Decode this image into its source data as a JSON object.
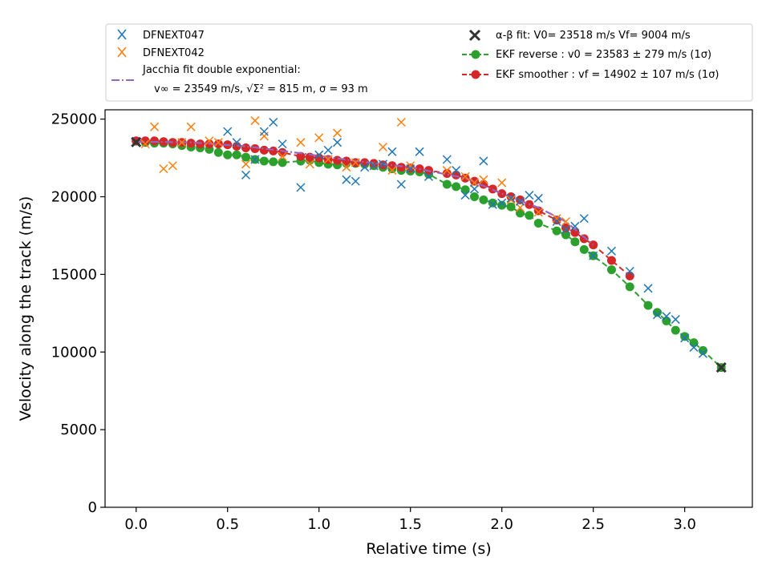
{
  "chart_data": {
    "type": "scatter",
    "xlabel": "Relative time (s)",
    "ylabel": "Velocity along the track (m/s)",
    "xlim": [
      -0.17,
      3.37
    ],
    "ylim": [
      0,
      25600
    ],
    "xticks": [
      0.0,
      0.5,
      1.0,
      1.5,
      2.0,
      2.5,
      3.0
    ],
    "xtick_labels": [
      "0.0",
      "0.5",
      "1.0",
      "1.5",
      "2.0",
      "2.5",
      "3.0"
    ],
    "yticks": [
      0,
      5000,
      10000,
      15000,
      20000,
      25000
    ],
    "ytick_labels": [
      "0",
      "5000",
      "10000",
      "15000",
      "20000",
      "25000"
    ],
    "grid": false,
    "legend_position": "above plot",
    "colors": {
      "blue": "#1f77b4",
      "orange": "#ff7f0e",
      "purple": "#9467bd",
      "green": "#2ca02c",
      "red": "#d62728",
      "black": "#333333"
    },
    "series": [
      {
        "name": "DFNEXT047",
        "marker": "x",
        "color": "#1f77b4",
        "x": [
          0.5,
          0.55,
          0.6,
          0.65,
          0.7,
          0.75,
          0.8,
          0.9,
          1.0,
          1.05,
          1.1,
          1.15,
          1.2,
          1.25,
          1.3,
          1.35,
          1.4,
          1.45,
          1.5,
          1.55,
          1.6,
          1.7,
          1.75,
          1.8,
          1.85,
          1.9,
          1.95,
          2.0,
          2.05,
          2.1,
          2.15,
          2.2,
          2.3,
          2.35,
          2.4,
          2.45,
          2.5,
          2.6,
          2.7,
          2.8,
          2.85,
          2.9,
          2.95,
          3.0,
          3.05,
          3.1
        ],
        "y": [
          24200,
          23500,
          21400,
          22400,
          24200,
          24800,
          23400,
          20600,
          22700,
          23000,
          23500,
          21100,
          21000,
          21900,
          22000,
          22100,
          22900,
          20800,
          21800,
          22900,
          21300,
          22400,
          21700,
          20100,
          20500,
          22300,
          19500,
          19600,
          19900,
          19700,
          20100,
          19900,
          18400,
          17900,
          18100,
          18600,
          16200,
          16500,
          15200,
          14100,
          12400,
          12300,
          12100,
          10900,
          10300,
          9900
        ]
      },
      {
        "name": "DFNEXT042",
        "marker": "x",
        "color": "#ff7f0e",
        "x": [
          0.05,
          0.1,
          0.15,
          0.2,
          0.25,
          0.3,
          0.4,
          0.45,
          0.6,
          0.65,
          0.7,
          0.8,
          0.9,
          0.95,
          1.0,
          1.05,
          1.1,
          1.15,
          1.2,
          1.3,
          1.35,
          1.4,
          1.45,
          1.5,
          1.7,
          1.8,
          1.85,
          1.9,
          2.0,
          2.05,
          2.1,
          2.2,
          2.3,
          2.35
        ],
        "y": [
          23400,
          24500,
          21800,
          22000,
          23500,
          24500,
          23600,
          23500,
          22100,
          24900,
          23900,
          22600,
          23500,
          22100,
          23800,
          22400,
          24100,
          21900,
          22200,
          22000,
          23200,
          21700,
          24800,
          22000,
          21700,
          21300,
          20900,
          21100,
          20900,
          19800,
          19300,
          19000,
          18600,
          18400
        ]
      },
      {
        "name": "Jacchia fit double exponential:",
        "name_line2": "v∞ = 23549 m/s, √Σ² = 815 m, σ = 93 m",
        "marker": "dashdot",
        "color": "#9467bd",
        "x": [
          0.0,
          0.3,
          0.6,
          0.9,
          1.2,
          1.5,
          1.8,
          2.0,
          2.2,
          2.35,
          2.5
        ],
        "y": [
          23549,
          23500,
          23250,
          22800,
          22300,
          21900,
          21200,
          20200,
          19300,
          18400,
          16900
        ]
      },
      {
        "name": "α-β fit: V0= 23518 m/s   Vf= 9004 m/s",
        "marker": "X",
        "color": "#333333",
        "x": [
          0.0,
          3.2
        ],
        "y": [
          23518,
          9004
        ]
      },
      {
        "name": "EKF reverse : v0 =  23583 ± 279 m/s (1σ)",
        "marker": "o-dashed",
        "color": "#2ca02c",
        "x": [
          0.0,
          0.05,
          0.1,
          0.15,
          0.2,
          0.25,
          0.3,
          0.35,
          0.4,
          0.45,
          0.5,
          0.55,
          0.6,
          0.65,
          0.7,
          0.75,
          0.8,
          0.9,
          0.95,
          1.0,
          1.05,
          1.1,
          1.15,
          1.2,
          1.25,
          1.3,
          1.35,
          1.4,
          1.45,
          1.5,
          1.55,
          1.6,
          1.7,
          1.75,
          1.8,
          1.85,
          1.9,
          1.95,
          2.0,
          2.05,
          2.1,
          2.15,
          2.2,
          2.3,
          2.35,
          2.4,
          2.45,
          2.5,
          2.6,
          2.7,
          2.8,
          2.85,
          2.9,
          2.95,
          3.0,
          3.05,
          3.1,
          3.2
        ],
        "y": [
          23583,
          23500,
          23450,
          23450,
          23400,
          23300,
          23200,
          23150,
          23050,
          22850,
          22700,
          22700,
          22550,
          22400,
          22300,
          22250,
          22200,
          22300,
          22350,
          22200,
          22100,
          22050,
          22150,
          22150,
          22100,
          22000,
          21900,
          21800,
          21700,
          21650,
          21600,
          21450,
          20800,
          20650,
          20450,
          20000,
          19800,
          19600,
          19450,
          19350,
          18950,
          18800,
          18300,
          17800,
          17550,
          17100,
          16600,
          16200,
          15300,
          14200,
          13000,
          12550,
          12000,
          11400,
          11000,
          10600,
          10100,
          9000
        ]
      },
      {
        "name": "EKF smoother : vf =  14902 ± 107 m/s (1σ)",
        "marker": "o-dashed",
        "color": "#d62728",
        "x": [
          0.0,
          0.05,
          0.1,
          0.15,
          0.2,
          0.25,
          0.3,
          0.35,
          0.4,
          0.45,
          0.5,
          0.55,
          0.6,
          0.65,
          0.7,
          0.75,
          0.8,
          0.9,
          0.95,
          1.0,
          1.05,
          1.1,
          1.15,
          1.2,
          1.25,
          1.3,
          1.35,
          1.4,
          1.45,
          1.5,
          1.55,
          1.6,
          1.7,
          1.75,
          1.8,
          1.85,
          1.9,
          1.95,
          2.0,
          2.05,
          2.1,
          2.15,
          2.2,
          2.3,
          2.35,
          2.4,
          2.45,
          2.5,
          2.6,
          2.7
        ],
        "y": [
          23600,
          23600,
          23600,
          23550,
          23500,
          23500,
          23450,
          23400,
          23400,
          23400,
          23350,
          23250,
          23150,
          23100,
          23000,
          22950,
          22850,
          22600,
          22550,
          22500,
          22400,
          22350,
          22300,
          22200,
          22200,
          22150,
          22050,
          22000,
          21900,
          21850,
          21800,
          21700,
          21500,
          21400,
          21200,
          21000,
          20800,
          20500,
          20200,
          20000,
          19800,
          19500,
          19100,
          18500,
          18000,
          17700,
          17300,
          16900,
          15900,
          14900
        ]
      }
    ],
    "legend": {
      "entries": [
        {
          "label": "DFNEXT047",
          "color": "#1f77b4",
          "marker": "x"
        },
        {
          "label": "DFNEXT042",
          "color": "#ff7f0e",
          "marker": "x"
        },
        {
          "label": "Jacchia fit double exponential:",
          "color": "#9467bd",
          "marker": "dashdot"
        },
        {
          "label": "α-β fit: V0= 23518 m/s   Vf= 9004 m/s",
          "color": "#333333",
          "marker": "X"
        },
        {
          "label": "EKF reverse : v0 =  23583 ± 279 m/s (1σ)",
          "color": "#2ca02c",
          "marker": "o-dashed"
        },
        {
          "label": "EKF smoother : vf =  14902 ± 107 m/s (1σ)",
          "color": "#d62728",
          "marker": "o-dashed"
        }
      ]
    }
  }
}
